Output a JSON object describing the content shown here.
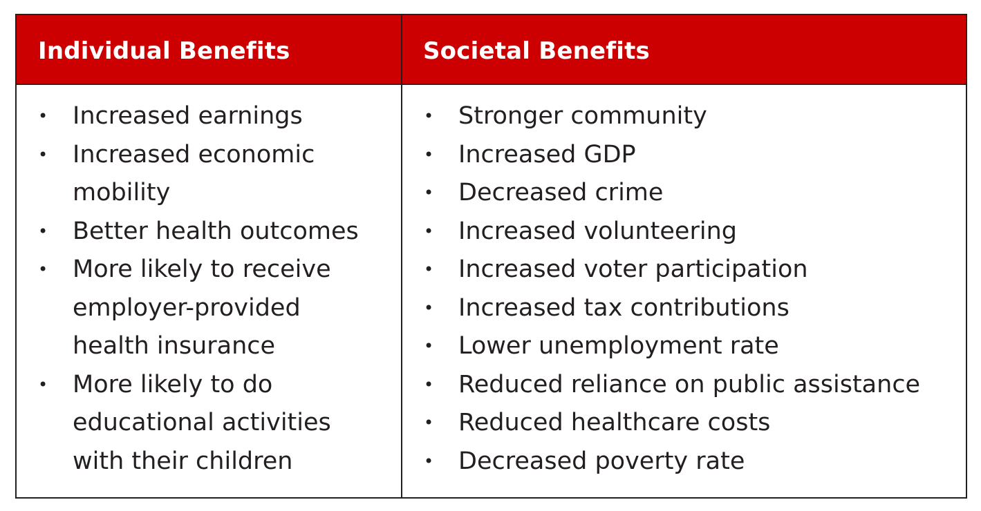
{
  "colors": {
    "header_background": "#cc0000",
    "header_text": "#ffffff",
    "body_text": "#231f20",
    "border": "#231f20"
  },
  "table": {
    "columns": [
      {
        "heading": "Individual Benefits",
        "items": [
          [
            "Increased earnings"
          ],
          [
            "Increased economic",
            "mobility"
          ],
          [
            "Better health outcomes"
          ],
          [
            "More likely to receive",
            "employer-provided",
            "health insurance"
          ],
          [
            "More likely to do",
            "educational activities",
            "with their children"
          ]
        ]
      },
      {
        "heading": "Societal Benefits",
        "items": [
          [
            "Stronger community"
          ],
          [
            "Increased GDP"
          ],
          [
            "Decreased crime"
          ],
          [
            "Increased volunteering"
          ],
          [
            "Increased voter participation"
          ],
          [
            "Increased tax contributions"
          ],
          [
            "Lower unemployment rate"
          ],
          [
            "Reduced reliance on public assistance"
          ],
          [
            "Reduced healthcare costs"
          ],
          [
            "Decreased poverty rate"
          ]
        ]
      }
    ]
  }
}
